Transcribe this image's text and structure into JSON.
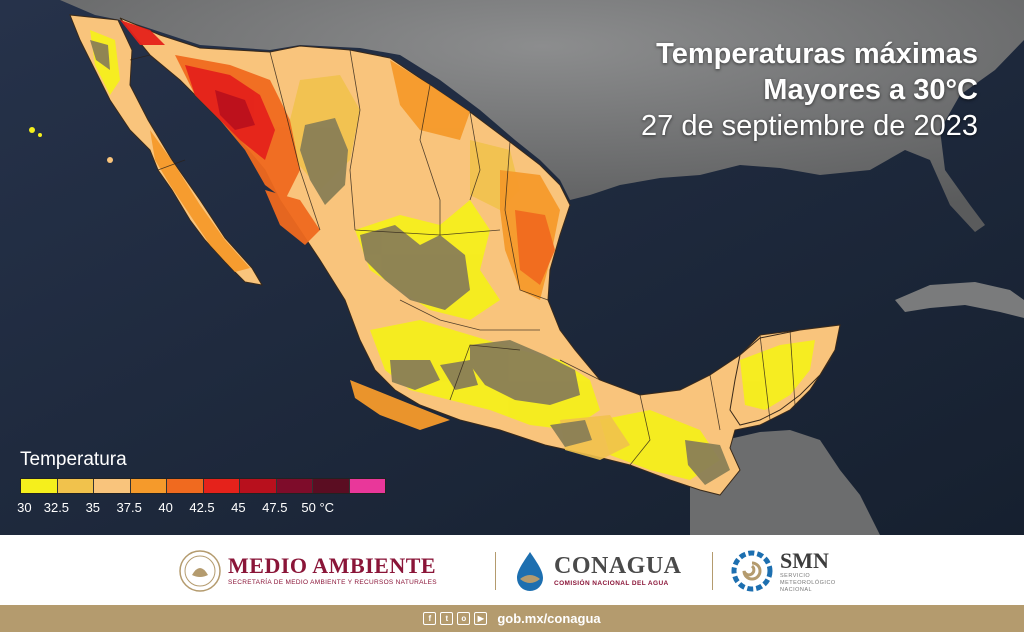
{
  "title": {
    "line1": "Temperaturas máximas",
    "line2": "Mayores a 30°C",
    "date": "27 de septiembre de 2023"
  },
  "legend": {
    "title": "Temperatura",
    "ticks": [
      "30",
      "32.5",
      "35",
      "37.5",
      "40",
      "42.5",
      "45",
      "47.5",
      "50 °C"
    ],
    "colors": [
      "#f5ef1c",
      "#f1c24c",
      "#f9c47c",
      "#f59a2b",
      "#f06a1f",
      "#e5221b",
      "#b8101d",
      "#7e0c2a",
      "#5b0d22",
      "#e9379a"
    ]
  },
  "colors": {
    "ocean": "#1e2a3d",
    "land_outside": "#6e6f70",
    "highland": "#8a7f56"
  },
  "footer": {
    "medio_ambiente": "MEDIO AMBIENTE",
    "medio_ambiente_sub": "SECRETARÍA DE MEDIO AMBIENTE Y RECURSOS NATURALES",
    "conagua": "CONAGUA",
    "conagua_sub": "COMISIÓN NACIONAL DEL AGUA",
    "smn": "SMN",
    "smn_sub1": "SERVICIO",
    "smn_sub2": "METEOROLÓGICO",
    "smn_sub3": "NACIONAL",
    "url": "gob.mx/conagua",
    "social_icons": [
      "facebook-icon",
      "twitter-icon",
      "instagram-icon",
      "youtube-icon"
    ]
  }
}
